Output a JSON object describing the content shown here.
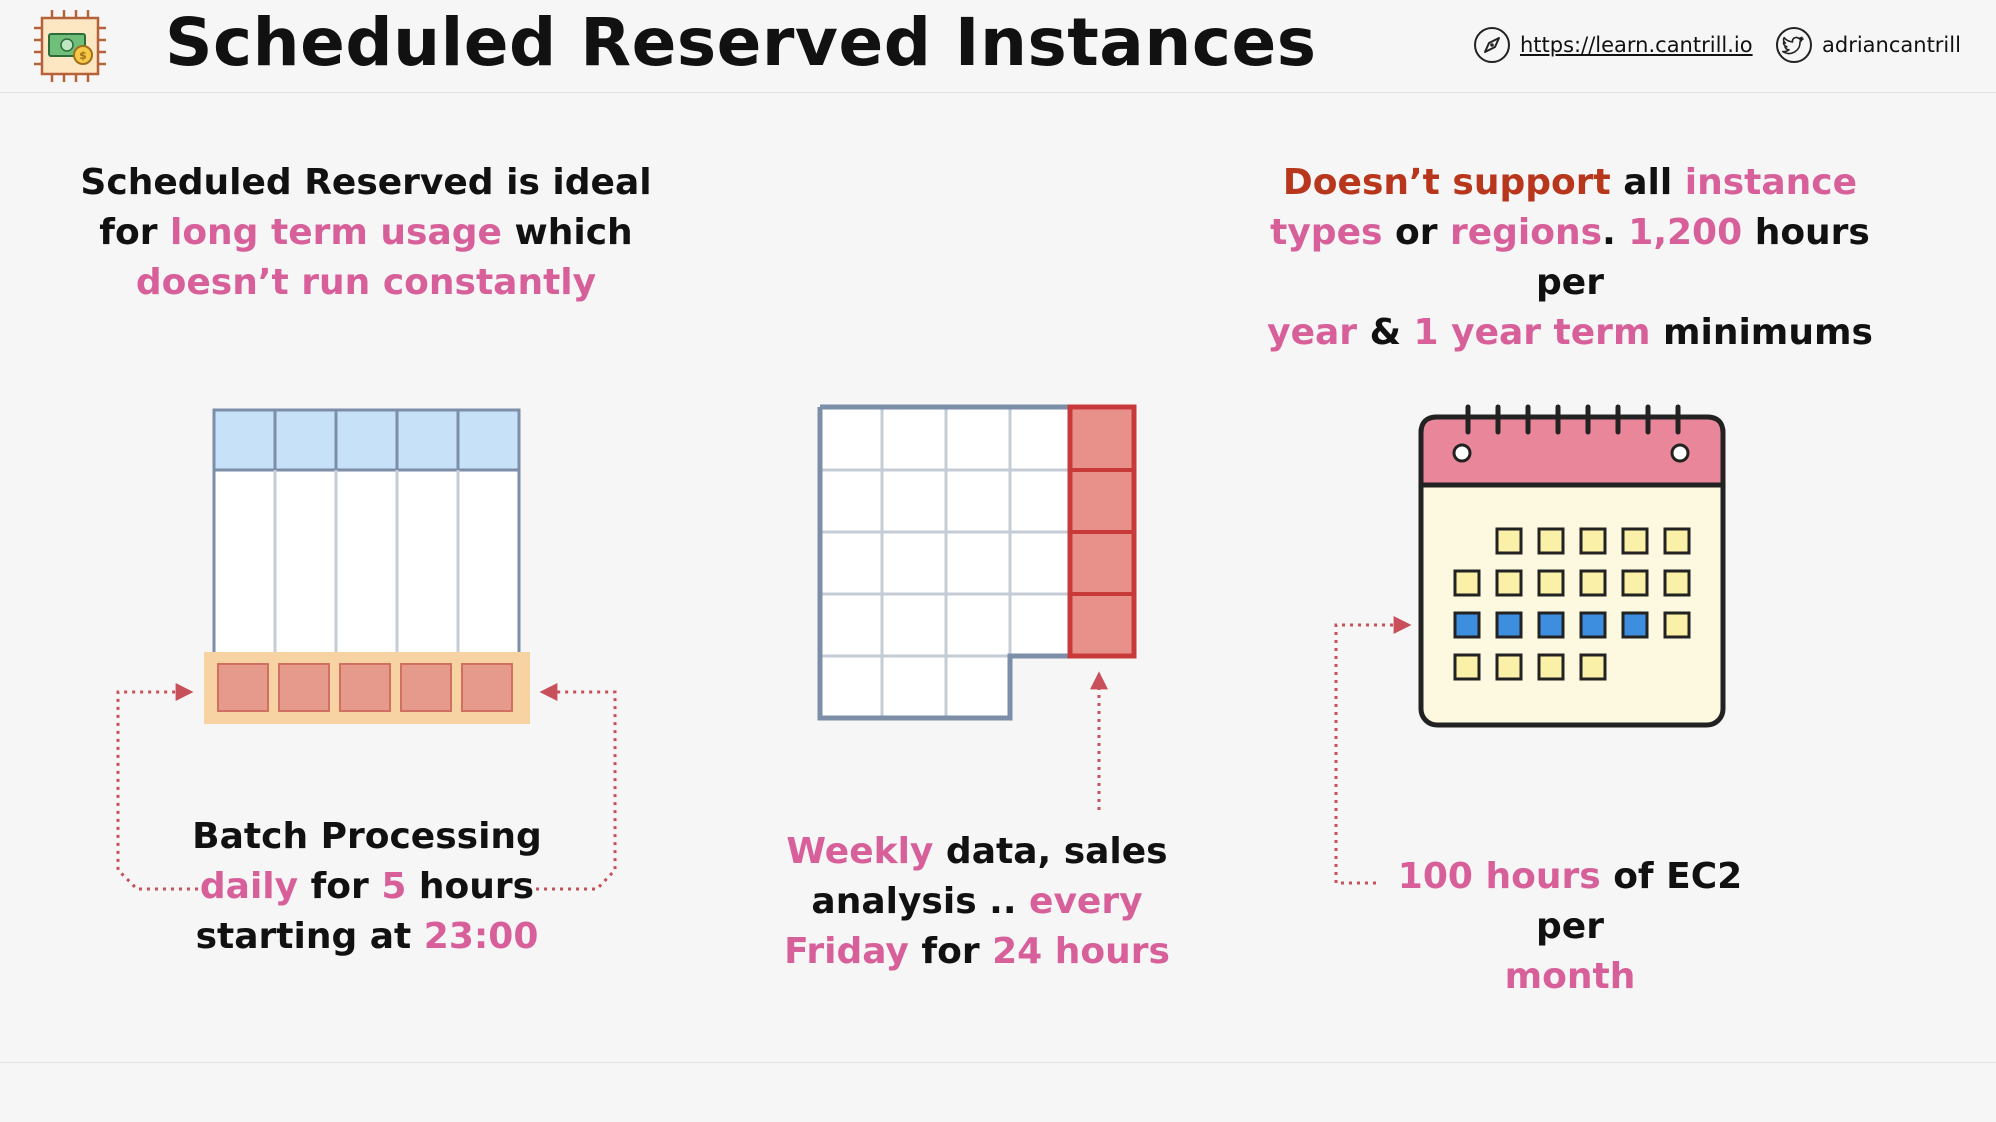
{
  "header": {
    "title": "Scheduled Reserved Instances",
    "logo_icon": "ec2-money-chip-icon",
    "website": {
      "icon": "compass-icon",
      "text": "https://learn.cantrill.io"
    },
    "twitter": {
      "icon": "twitter-bird-icon",
      "text": "adriancantrill"
    }
  },
  "left_blurb": {
    "t1": "Scheduled Reserved is ideal",
    "t2": "for ",
    "t3": "long term usage",
    "t4": " which",
    "t5": "doesn’t run constantly"
  },
  "right_blurb": {
    "t1": "Doesn’t support",
    "t2": " all ",
    "t3": "instance",
    "t4": "types",
    "t5": " or ",
    "t6": "regions",
    "t7": ". ",
    "t8": "1,200",
    "t9": " hours per",
    "t10": "year",
    "t11": " & ",
    "t12": "1 year term",
    "t13": " minimums"
  },
  "caption_left": {
    "t1": "Batch Processing",
    "t2": "daily",
    "t3": " for ",
    "t4": "5",
    "t5": " hours",
    "t6": "starting at ",
    "t7": "23:00"
  },
  "caption_middle": {
    "t1": "Weekly",
    "t2": " data, sales",
    "t3": "analysis .. ",
    "t4": "every",
    "t5": "Friday",
    "t6": " for ",
    "t7": "24 hours"
  },
  "caption_right": {
    "t1": "100 hours",
    "t2": " of EC2 per",
    "t3": "month"
  },
  "colors": {
    "accent_pink": "#d8609a",
    "accent_red": "#b8361c",
    "highlight_cell": "#e8918a",
    "header_cell": "#c7e2f8",
    "calendar_header": "#e9869a",
    "calendar_body": "#fdf8e0",
    "calendar_day": "#fbf0a8",
    "calendar_selected": "#3d8ede",
    "arrow": "#c8505a"
  }
}
